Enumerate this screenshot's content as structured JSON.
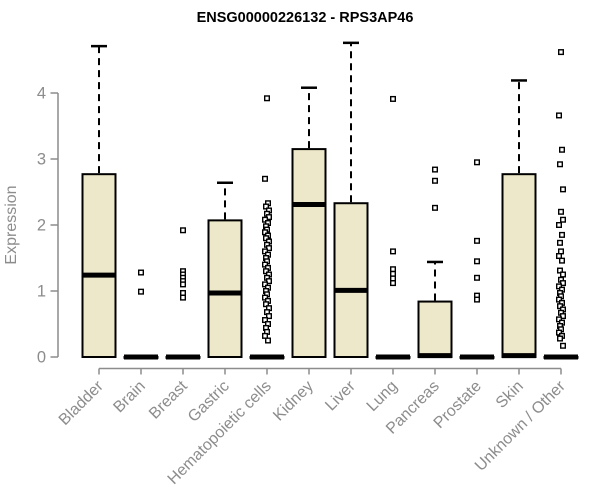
{
  "chart_data": {
    "type": "boxplot",
    "title": "ENSG00000226132 - RPS3AP46",
    "xlabel": "",
    "ylabel": "Expression",
    "ylim": [
      0,
      4.9
    ],
    "yticks": [
      0,
      1,
      2,
      3,
      4
    ],
    "grid": false,
    "legend": "none",
    "colors": {
      "box_fill": "#ede8c9",
      "box_border": "#000000",
      "median": "#000000",
      "whisker": "#000000",
      "outlier": "#000000",
      "axis": "#8c8c8c",
      "axis_text": "#8c8c8c",
      "title_text": "#000000",
      "background": "#ffffff"
    },
    "categories": [
      "Bladder",
      "Brain",
      "Breast",
      "Gastric",
      "Hematopoietic cells",
      "Kidney",
      "Liver",
      "Lung",
      "Pancreas",
      "Prostate",
      "Skin",
      "Unknown / Other"
    ],
    "series": [
      {
        "category": "Bladder",
        "whisker_low": 0,
        "q1": 0,
        "median": 1.24,
        "q3": 2.77,
        "whisker_high": 4.71,
        "outliers": []
      },
      {
        "category": "Brain",
        "whisker_low": 0,
        "q1": 0,
        "median": 0,
        "q3": 0,
        "whisker_high": 0,
        "outliers": [
          1.28,
          0.99
        ]
      },
      {
        "category": "Breast",
        "whisker_low": 0,
        "q1": 0,
        "median": 0,
        "q3": 0,
        "whisker_high": 0,
        "outliers": [
          1.92,
          1.3,
          1.25,
          1.2,
          1.15,
          1.1,
          0.97,
          0.9
        ]
      },
      {
        "category": "Gastric",
        "whisker_low": 0,
        "q1": 0,
        "median": 0.97,
        "q3": 2.07,
        "whisker_high": 2.64,
        "outliers": []
      },
      {
        "category": "Hematopoietic cells",
        "whisker_low": 0,
        "q1": 0,
        "median": 0,
        "q3": 0,
        "whisker_high": 0,
        "outliers": [
          3.92,
          2.7,
          2.33,
          2.28,
          2.22,
          2.17,
          2.12,
          2.08,
          2.03,
          1.98,
          1.93,
          1.89,
          1.84,
          1.8,
          1.75,
          1.7,
          1.65,
          1.6,
          1.55,
          1.5,
          1.45,
          1.4,
          1.35,
          1.3,
          1.25,
          1.2,
          1.15,
          1.1,
          1.05,
          1.0,
          0.95,
          0.9,
          0.85,
          0.8,
          0.74,
          0.68,
          0.62,
          0.56,
          0.5,
          0.44,
          0.38,
          0.32,
          0.25
        ]
      },
      {
        "category": "Kidney",
        "whisker_low": 0,
        "q1": 0,
        "median": 2.31,
        "q3": 3.15,
        "whisker_high": 4.08,
        "outliers": []
      },
      {
        "category": "Liver",
        "whisker_low": 0,
        "q1": 0,
        "median": 1.01,
        "q3": 2.33,
        "whisker_high": 4.76,
        "outliers": []
      },
      {
        "category": "Lung",
        "whisker_low": 0,
        "q1": 0,
        "median": 0,
        "q3": 0,
        "whisker_high": 0,
        "outliers": [
          3.91,
          1.6,
          1.33,
          1.26,
          1.19,
          1.12
        ]
      },
      {
        "category": "Pancreas",
        "whisker_low": 0,
        "q1": 0,
        "median": 0.02,
        "q3": 0.84,
        "whisker_high": 1.44,
        "outliers": [
          2.84,
          2.67,
          2.26
        ]
      },
      {
        "category": "Prostate",
        "whisker_low": 0,
        "q1": 0,
        "median": 0,
        "q3": 0,
        "whisker_high": 0,
        "outliers": [
          2.95,
          1.76,
          1.45,
          1.2,
          0.93,
          0.87
        ]
      },
      {
        "category": "Skin",
        "whisker_low": 0,
        "q1": 0,
        "median": 0.02,
        "q3": 2.77,
        "whisker_high": 4.19,
        "outliers": []
      },
      {
        "category": "Unknown / Other",
        "whisker_low": 0,
        "q1": 0,
        "median": 0,
        "q3": 0,
        "whisker_high": 0,
        "outliers": [
          4.62,
          3.66,
          3.14,
          2.92,
          2.54,
          2.2,
          2.08,
          2.0,
          1.85,
          1.73,
          1.6,
          1.53,
          1.46,
          1.31,
          1.25,
          1.17,
          1.12,
          1.07,
          1.02,
          0.97,
          0.92,
          0.87,
          0.82,
          0.77,
          0.72,
          0.67,
          0.62,
          0.57,
          0.52,
          0.47,
          0.42,
          0.37,
          0.32,
          0.28,
          0.17
        ]
      }
    ]
  }
}
